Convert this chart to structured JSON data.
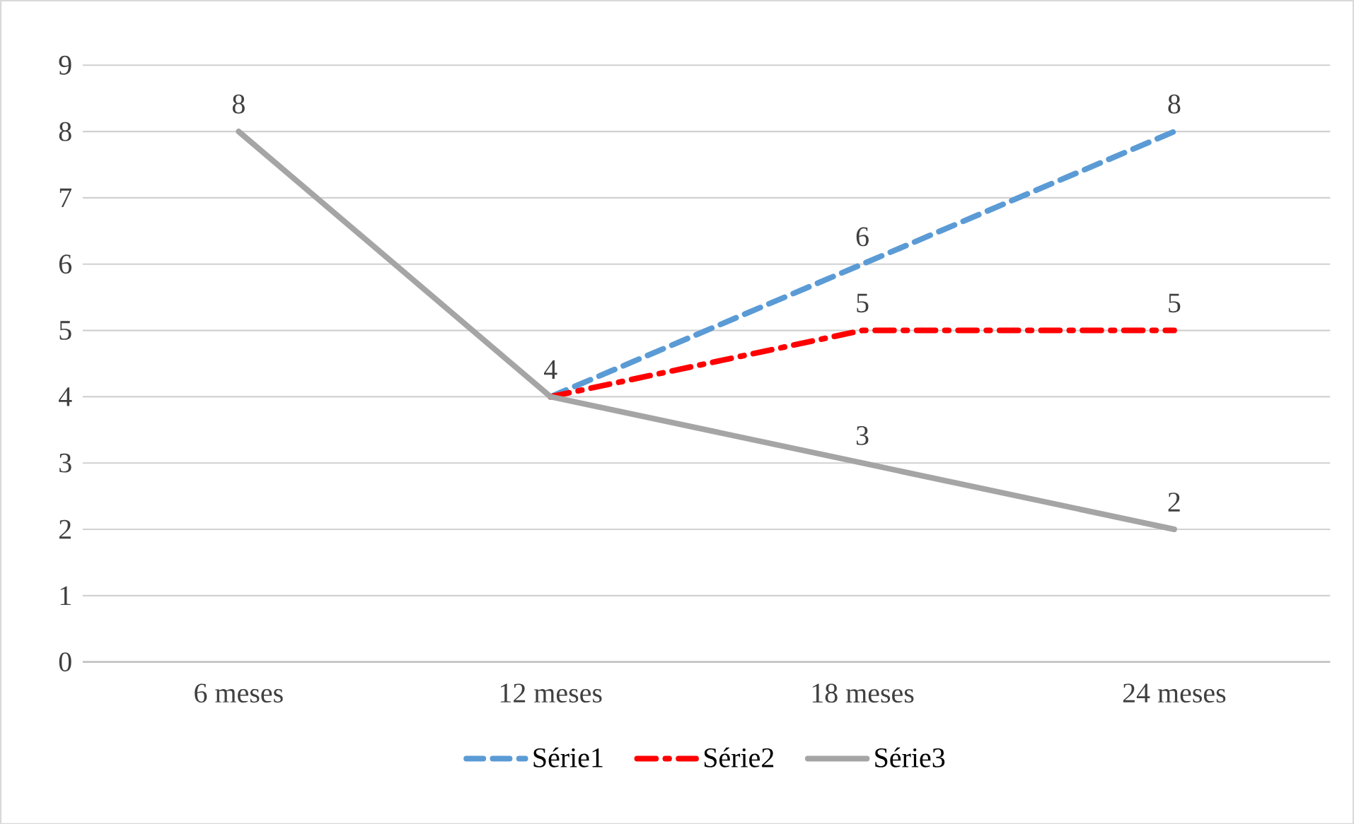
{
  "chart_data": {
    "type": "line",
    "categories": [
      "6 meses",
      "12 meses",
      "18 meses",
      "24 meses"
    ],
    "series": [
      {
        "name": "Série1",
        "color": "#5b9bd5",
        "values": [
          null,
          4,
          6,
          8
        ],
        "line_style": "dashed",
        "value_labels": [
          null,
          "4",
          "6",
          "8"
        ]
      },
      {
        "name": "Série2",
        "color": "#ff0000",
        "values": [
          null,
          4,
          5,
          5
        ],
        "line_style": "dashdot",
        "value_labels": [
          null,
          null,
          "5",
          "5"
        ]
      },
      {
        "name": "Série3",
        "color": "#a5a5a5",
        "values": [
          8,
          4,
          3,
          2
        ],
        "line_style": "solid",
        "value_labels": [
          "8",
          null,
          "3",
          "2"
        ]
      }
    ],
    "ylim": [
      0,
      9
    ],
    "yticks": [
      0,
      1,
      2,
      3,
      4,
      5,
      6,
      7,
      8,
      9
    ],
    "grid": "y",
    "legend": "bottom",
    "marker": "none"
  }
}
